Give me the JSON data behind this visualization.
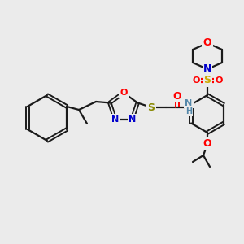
{
  "bg_color": "#ebebeb",
  "bond_color": "#1a1a1a",
  "bond_width": 1.6,
  "fig_size": [
    3.0,
    3.0
  ],
  "dpi": 100,
  "colors": {
    "O": "#ff0000",
    "N": "#0000cc",
    "S": "#ccaa00",
    "S_thio": "#888800",
    "NH": "#5588aa",
    "black": "#1a1a1a"
  }
}
